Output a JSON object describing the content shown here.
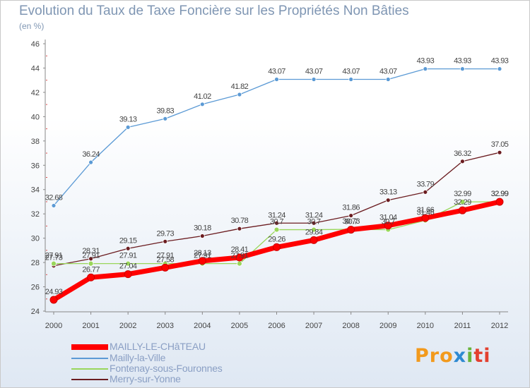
{
  "chart_data": {
    "type": "line",
    "title": "Evolution du Taux de Taxe Foncière sur les Propriétés Non Bâties",
    "ylabel": "(en %)",
    "xlabel": "",
    "x": [
      "2000",
      "2001",
      "2002",
      "2003",
      "2004",
      "2005",
      "2006",
      "2007",
      "2008",
      "2009",
      "2010",
      "2011",
      "2012"
    ],
    "ylim": [
      24,
      46
    ],
    "yticks": [
      24,
      26,
      28,
      30,
      32,
      34,
      36,
      38,
      40,
      42,
      44,
      46
    ],
    "grid": false,
    "legend_position": "bottom-left",
    "series": [
      {
        "name": "MAILLY-LE-CHâTEAU",
        "color": "#ff0000",
        "values": [
          24.93,
          26.77,
          27.04,
          27.58,
          28.13,
          28.41,
          29.26,
          29.84,
          30.7,
          31.04,
          31.66,
          32.29,
          32.99
        ],
        "labels": [
          "24.93",
          "26.77",
          "27.04",
          "27.58",
          "28.13",
          "28.41",
          "29.26",
          "29.84",
          "30.7",
          "31.04",
          "31.66",
          "32.29",
          "32.99"
        ]
      },
      {
        "name": "Mailly-la-Ville",
        "color": "#5b9ad5",
        "values": [
          32.68,
          36.24,
          39.13,
          39.83,
          41.02,
          41.82,
          43.07,
          43.07,
          43.07,
          43.07,
          43.93,
          43.93,
          43.93
        ],
        "labels": [
          "32.68",
          "36.24",
          "39.13",
          "39.83",
          "41.02",
          "41.82",
          "43.07",
          "43.07",
          "43.07",
          "43.07",
          "43.93",
          "43.93",
          "43.93"
        ]
      },
      {
        "name": "Fontenay-sous-Fouronnes",
        "color": "#99d65a",
        "values": [
          27.91,
          27.91,
          27.91,
          27.91,
          27.91,
          27.91,
          30.7,
          30.7,
          30.73,
          30.7,
          31.46,
          32.99,
          32.99
        ],
        "labels": [
          "27.91",
          "27.91",
          "27.91",
          "27.91",
          "27.91",
          "27.91",
          "30.7",
          "30.7",
          "30.73",
          "30.7",
          "31.46",
          "32.99",
          "32.99"
        ]
      },
      {
        "name": "Merry-sur-Yonne",
        "color": "#6b1c20",
        "values": [
          27.73,
          28.31,
          29.15,
          29.73,
          30.18,
          30.78,
          31.24,
          31.24,
          31.86,
          33.13,
          33.79,
          36.32,
          37.05
        ],
        "labels": [
          "27.73",
          "28.31",
          "29.15",
          "29.73",
          "30.18",
          "30.78",
          "31.24",
          "31.24",
          "31.86",
          "33.13",
          "33.79",
          "36.32",
          "37.05"
        ]
      }
    ]
  },
  "legend": {
    "items": [
      {
        "label": "MAILLY-LE-CHâTEAU",
        "color": "#ff0000"
      },
      {
        "label": "Mailly-la-Ville",
        "color": "#5b9ad5"
      },
      {
        "label": "Fontenay-sous-Fouronnes",
        "color": "#99d65a"
      },
      {
        "label": "Merry-sur-Yonne",
        "color": "#6b1c20"
      }
    ]
  },
  "brand": {
    "text": "Proxiti",
    "parts": [
      "Pro",
      "x",
      "i",
      "ti"
    ]
  }
}
